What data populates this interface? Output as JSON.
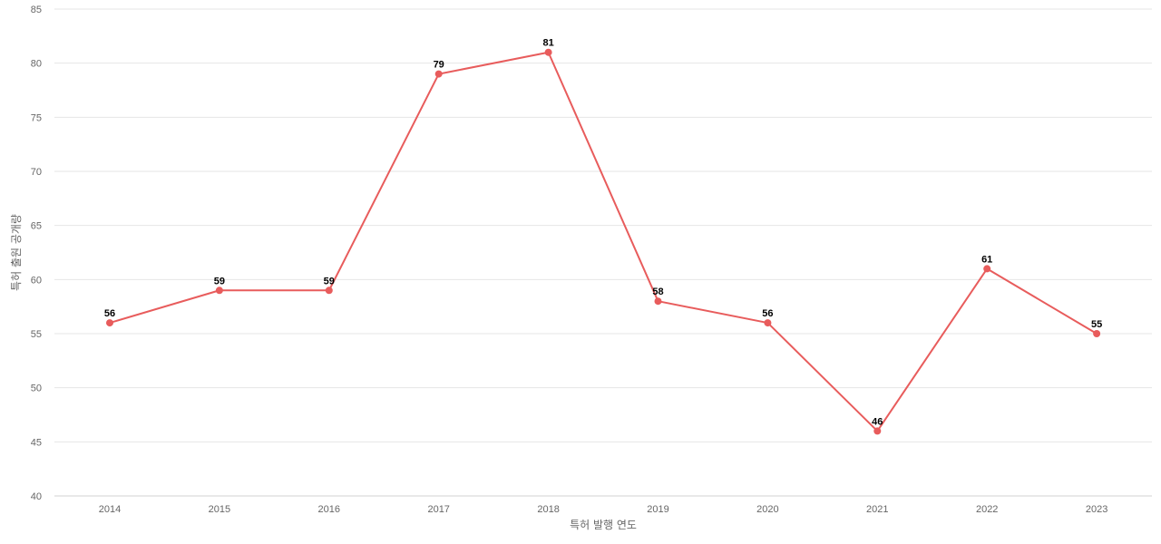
{
  "chart_data": {
    "type": "line",
    "title": "",
    "xlabel": "특허 발행 연도",
    "ylabel": "특허 출원 공개량",
    "categories": [
      "2014",
      "2015",
      "2016",
      "2017",
      "2018",
      "2019",
      "2020",
      "2021",
      "2022",
      "2023"
    ],
    "series": [
      {
        "values": [
          56,
          59,
          59,
          79,
          81,
          58,
          56,
          46,
          61,
          55
        ],
        "color": "#e85c5c"
      }
    ],
    "ylim": [
      40,
      85
    ],
    "yticks": [
      40,
      45,
      50,
      55,
      60,
      65,
      70,
      75,
      80,
      85
    ],
    "grid": true,
    "legend": "none",
    "data_labels": true
  }
}
